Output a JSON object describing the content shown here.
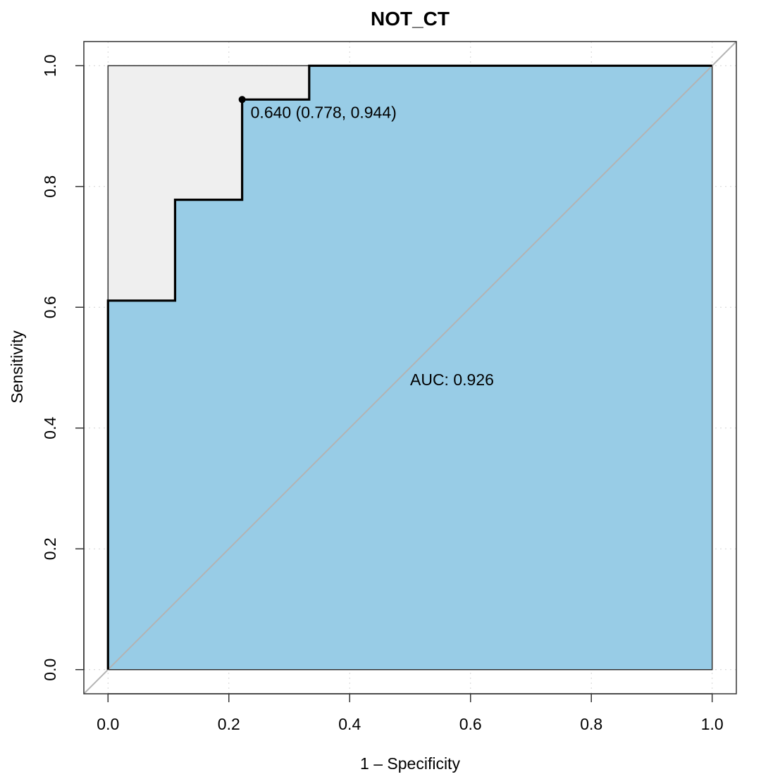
{
  "chart_data": {
    "type": "line",
    "title": "NOT_CT",
    "xlabel": "1 – Specificity",
    "ylabel": "Sensitivity",
    "xlim": [
      -0.04,
      1.04
    ],
    "ylim": [
      -0.04,
      1.04
    ],
    "x_ticks": [
      0.0,
      0.2,
      0.4,
      0.6,
      0.8,
      1.0
    ],
    "x_tick_labels": [
      "0.0",
      "0.2",
      "0.4",
      "0.6",
      "0.8",
      "1.0"
    ],
    "y_ticks": [
      0.0,
      0.2,
      0.4,
      0.6,
      0.8,
      1.0
    ],
    "y_tick_labels": [
      "0.0",
      "0.2",
      "0.4",
      "0.6",
      "0.8",
      "1.0"
    ],
    "grid": true,
    "series": [
      {
        "x": [
          0.0,
          0.0,
          0.111,
          0.111,
          0.222,
          0.222,
          0.333,
          0.333,
          1.0
        ],
        "y": [
          0.0,
          0.611,
          0.611,
          0.778,
          0.778,
          0.944,
          0.944,
          1.0,
          1.0
        ]
      }
    ],
    "diagonal": {
      "x": [
        -0.04,
        1.04
      ],
      "y": [
        -0.04,
        1.04
      ]
    },
    "best_threshold": {
      "x": 0.222,
      "y": 0.944,
      "label": "0.640 (0.778, 0.944)"
    },
    "auc_label": {
      "x": 0.5,
      "y": 0.48,
      "text": "AUC: 0.926"
    },
    "colors": {
      "auc_fill": "#98cce6",
      "upper_fill": "#efefef",
      "curve": "#000000",
      "diagonal": "#b3b3b3",
      "grid": "#d3d3d3",
      "frame": "#333333"
    }
  }
}
